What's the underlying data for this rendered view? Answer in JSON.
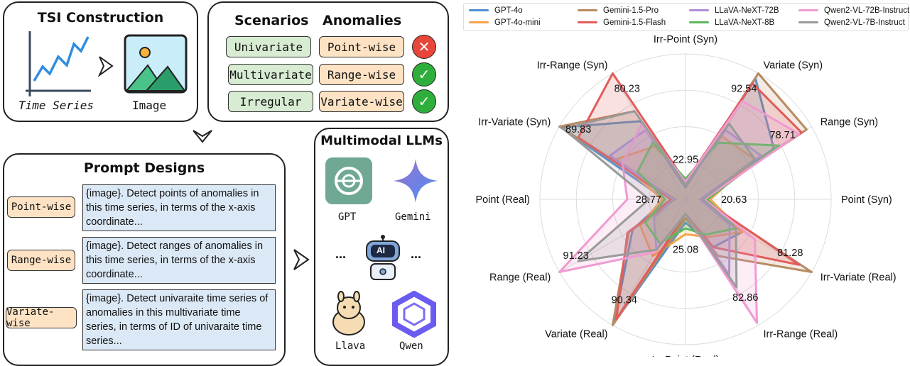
{
  "tsi": {
    "title": "TSI Construction",
    "ts_label": "Time Series",
    "img_label": "Image"
  },
  "scenarios": {
    "title_scen": "Scenarios",
    "title_anom": "Anomalies",
    "items": [
      "Univariate",
      "Multivariate",
      "Irregular"
    ],
    "anomalies": [
      "Point-wise",
      "Range-wise",
      "Variate-wise"
    ],
    "status_colors": [
      "#e8463b",
      "#2eae3a",
      "#2eae3a"
    ]
  },
  "prompt": {
    "title": "Prompt Designs",
    "rows": [
      {
        "tag": "Point-wise",
        "text": "{image}. Detect points of anomalies in this time series, in terms of the x-axis coordinate..."
      },
      {
        "tag": "Range-wise",
        "text": "{image}. Detect ranges of anomalies in this time series, in terms of the x-axis coordinate..."
      },
      {
        "tag": "Variate-wise",
        "text": "{image}. Detect univaraite time series of anomalies in this multivariate time series, in terms of ID of univaraite time series..."
      }
    ]
  },
  "mllm": {
    "title": "Multimodal LLMs",
    "models": [
      "GPT",
      "Gemini",
      "Llava",
      "Qwen"
    ],
    "dots": "...",
    "ai": "AI"
  },
  "chart_data": {
    "type": "radar",
    "axes": [
      "Irr-Point (Syn)",
      "Variate (Syn)",
      "Range (Syn)",
      "Point (Syn)",
      "Irr-Variate (Real)",
      "Irr-Range (Real)",
      "Irr-Point (Real)",
      "Variate (Real)",
      "Range (Real)",
      "Point (Real)",
      "Irr-Variate (Syn)",
      "Irr-Range (Syn)"
    ],
    "axis_min": [
      22.95,
      0,
      0,
      20.63,
      0,
      0,
      25.08,
      0,
      0,
      28.77,
      0,
      0
    ],
    "axis_max": [
      0,
      92.54,
      78.71,
      0,
      81.28,
      82.86,
      0,
      90.34,
      91.23,
      0,
      89.83,
      80.23
    ],
    "value_labels": [
      {
        "axis": 0,
        "text": "22.95"
      },
      {
        "axis": 1,
        "text": "92.54"
      },
      {
        "axis": 2,
        "text": "78.71"
      },
      {
        "axis": 3,
        "text": "20.63"
      },
      {
        "axis": 4,
        "text": "81.28"
      },
      {
        "axis": 5,
        "text": "82.86"
      },
      {
        "axis": 6,
        "text": "25.08"
      },
      {
        "axis": 7,
        "text": "90.34"
      },
      {
        "axis": 8,
        "text": "91.23"
      },
      {
        "axis": 9,
        "text": "28.77"
      },
      {
        "axis": 10,
        "text": "89.83"
      },
      {
        "axis": 11,
        "text": "80.23"
      }
    ],
    "normalized_scale": "each axis scaled 0 to its maximum",
    "series": [
      {
        "name": "GPT-4o",
        "color": "#4e8fd0",
        "values": [
          0.08,
          0.96,
          0.7,
          0.14,
          0.45,
          0.38,
          0.16,
          0.98,
          0.42,
          0.14,
          0.99,
          0.62
        ]
      },
      {
        "name": "GPT-4o-mini",
        "color": "#f4a44b",
        "values": [
          0.14,
          0.5,
          0.55,
          0.17,
          0.45,
          0.3,
          0.24,
          0.45,
          0.36,
          0.16,
          0.55,
          0.42
        ]
      },
      {
        "name": "Gemini-1.5-Pro",
        "color": "#b78a63",
        "values": [
          0.1,
          1.0,
          0.96,
          0.11,
          1.0,
          0.45,
          0.13,
          1.0,
          0.45,
          0.07,
          1.0,
          0.7
        ]
      },
      {
        "name": "Gemini-1.5-Flash",
        "color": "#e35b5b",
        "values": [
          0.12,
          0.92,
          0.92,
          0.12,
          0.9,
          0.38,
          0.1,
          0.95,
          0.46,
          0.1,
          0.85,
          1.0
        ]
      },
      {
        "name": "LLaVA-NeXT-72B",
        "color": "#b18ad4",
        "values": [
          0.1,
          0.55,
          0.6,
          0.1,
          0.35,
          0.6,
          0.1,
          0.4,
          0.25,
          0.08,
          0.6,
          0.55
        ]
      },
      {
        "name": "LLaVA-NeXT-8B",
        "color": "#5cb85c",
        "values": [
          0.14,
          0.45,
          0.74,
          0.15,
          0.4,
          0.28,
          0.2,
          0.35,
          0.32,
          0.14,
          0.38,
          0.45
        ]
      },
      {
        "name": "Qwen2-VL-72B-Instruct",
        "color": "#f09ad2",
        "values": [
          0.12,
          0.78,
          0.9,
          0.13,
          0.55,
          0.98,
          0.1,
          0.42,
          1.0,
          0.4,
          0.5,
          0.6
        ]
      },
      {
        "name": "Qwen2-VL-7B-Instruct",
        "color": "#9a9a9a",
        "values": [
          0.1,
          0.6,
          0.55,
          0.12,
          0.4,
          0.7,
          0.1,
          0.4,
          0.85,
          0.25,
          0.97,
          0.7
        ]
      }
    ]
  }
}
